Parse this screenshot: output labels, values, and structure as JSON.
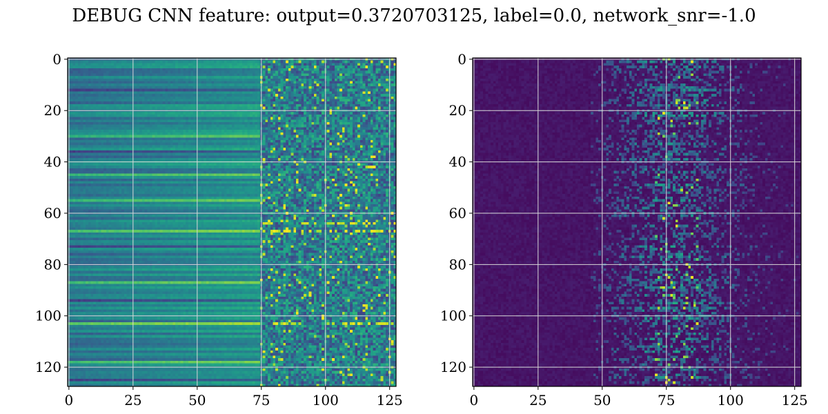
{
  "title": "DEBUG CNN feature: output=0.3720703125, label=0.0, network_snr=-1.0",
  "chart_data": [
    {
      "type": "heatmap",
      "title": "",
      "xlabel": "",
      "ylabel": "",
      "colormap": "viridis",
      "rows": 128,
      "cols": 128,
      "xlim": [
        0,
        127
      ],
      "ylim": [
        127,
        0
      ],
      "xticks": [
        0,
        25,
        50,
        75,
        100,
        125
      ],
      "yticks": [
        0,
        20,
        40,
        60,
        80,
        100,
        120
      ],
      "xtick_labels": [
        "0",
        "25",
        "50",
        "75",
        "100",
        "125"
      ],
      "ytick_labels": [
        "0",
        "20",
        "40",
        "60",
        "80",
        "100",
        "120"
      ],
      "grid": true,
      "value_range": [
        0,
        1
      ],
      "pattern": "row-banded moderate values on columns 0-75, noisy high-variance values on columns 75-127; strong bright rows near 67, 87, 103"
    },
    {
      "type": "heatmap",
      "title": "",
      "xlabel": "",
      "ylabel": "",
      "colormap": "viridis",
      "rows": 128,
      "cols": 128,
      "xlim": [
        0,
        127
      ],
      "ylim": [
        127,
        0
      ],
      "xticks": [
        0,
        25,
        50,
        75,
        100,
        125
      ],
      "yticks": [
        0,
        20,
        40,
        60,
        80,
        100,
        120
      ],
      "xtick_labels": [
        "0",
        "25",
        "50",
        "75",
        "100",
        "125"
      ],
      "ytick_labels": [
        "0",
        "20",
        "40",
        "60",
        "80",
        "100",
        "120"
      ],
      "grid": true,
      "value_range": [
        0,
        1
      ],
      "pattern": "mostly low (dark purple) values on columns 0-45, sparse scattered activations concentrated around columns 60-100 peaking near column 78"
    }
  ],
  "colors": {
    "viridis_low": "#440154",
    "viridis_mid": "#21918c",
    "viridis_high": "#fde725",
    "grid": "#d9d9d9",
    "axes": "#000000"
  }
}
